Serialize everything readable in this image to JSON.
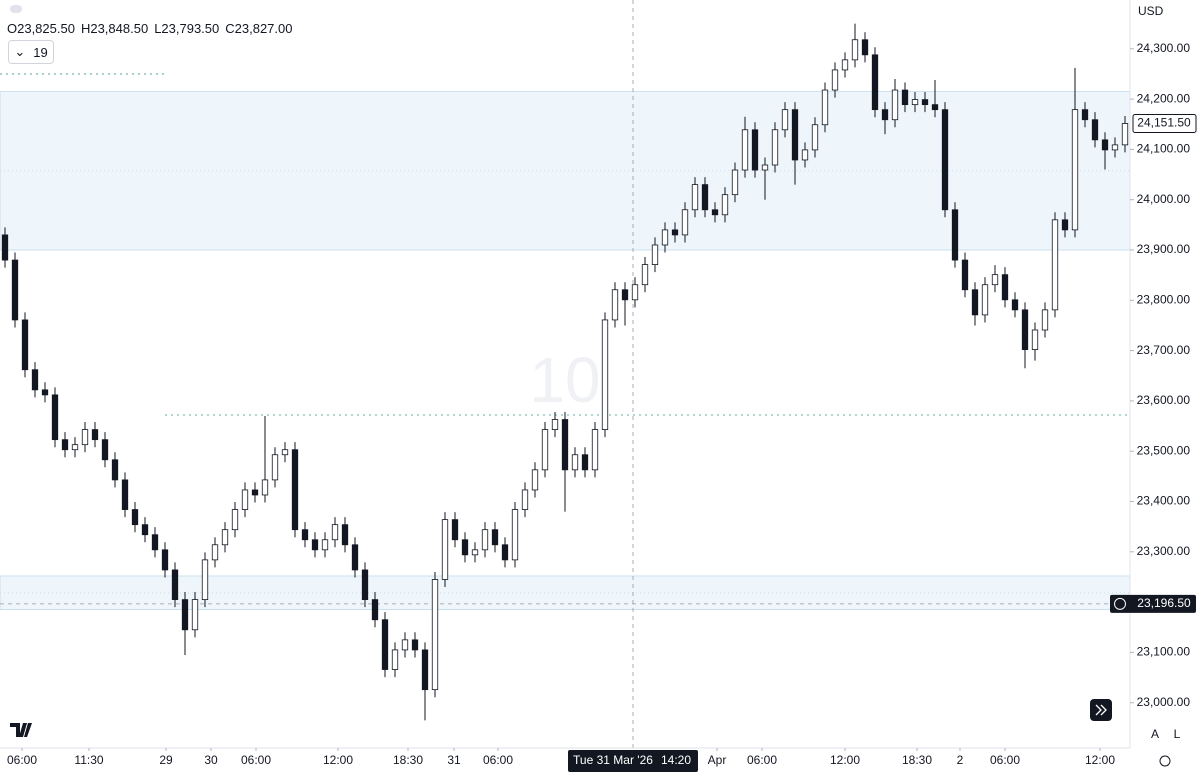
{
  "chart_data": {
    "type": "candlestick",
    "currency": "USD",
    "ohlc_header": [
      "O23,825.50",
      "H23,848.50",
      "L23,793.50",
      "C23,827.00"
    ],
    "indicator_count": "19",
    "watermark": "10",
    "buttons": [
      "A",
      "L"
    ],
    "color": "#131722",
    "xlim": [
      -0.5,
      112.5
    ],
    "ylim": [
      22910,
      24397
    ],
    "yticks": [
      {
        "value": 24300,
        "label": "24,300.00"
      },
      {
        "value": 24200,
        "label": "24,200.00"
      },
      {
        "value": 24100,
        "label": "24,100.00"
      },
      {
        "value": 24000,
        "label": "24,000.00"
      },
      {
        "value": 23900,
        "label": "23,900.00"
      },
      {
        "value": 23800,
        "label": "23,800.00"
      },
      {
        "value": 23700,
        "label": "23,700.00"
      },
      {
        "value": 23600,
        "label": "23,600.00"
      },
      {
        "value": 23500,
        "label": "23,500.00"
      },
      {
        "value": 23400,
        "label": "23,400.00"
      },
      {
        "value": 23300,
        "label": "23,300.00"
      },
      {
        "value": 23200,
        "label": "23,200.00"
      },
      {
        "value": 23100,
        "label": "23,100.00"
      },
      {
        "value": 23000,
        "label": "23,000.00"
      }
    ],
    "xticks": [
      {
        "value": 1.7,
        "label": "06:00"
      },
      {
        "value": 8.4,
        "label": "11:30"
      },
      {
        "value": 16.1,
        "label": "29"
      },
      {
        "value": 20.6,
        "label": "30"
      },
      {
        "value": 25.1,
        "label": "06:00"
      },
      {
        "value": 33.3,
        "label": "12:00"
      },
      {
        "value": 40.3,
        "label": "18:30"
      },
      {
        "value": 44.9,
        "label": "31"
      },
      {
        "value": 49.3,
        "label": "06:00"
      },
      {
        "value": 71.2,
        "label": "Apr"
      },
      {
        "value": 75.7,
        "label": "06:00"
      },
      {
        "value": 84,
        "label": "12:00"
      },
      {
        "value": 91.2,
        "label": "18:30"
      },
      {
        "value": 95.5,
        "label": "2"
      },
      {
        "value": 100,
        "label": "06:00"
      },
      {
        "value": 109.5,
        "label": "12:00"
      }
    ],
    "zones": [
      {
        "from": 23900,
        "to": 24215,
        "color": "#eef6fb"
      },
      {
        "from": 23185,
        "to": 23252,
        "color": "#eef6fb"
      }
    ],
    "levels": [
      {
        "value": 24250,
        "x_from": -0.5,
        "x_to": 16
      },
      {
        "value": 23572,
        "x_from": 16,
        "x_to": 112.5
      }
    ],
    "last_price": {
      "value": 24151.5,
      "label": "24,151.50"
    },
    "crosshair": {
      "x": 62.8,
      "price": {
        "value": 23196.5,
        "label": "23,196.50"
      },
      "date": "Tue 31 Mar '26",
      "time": "14:20"
    },
    "open": [
      23930,
      23880,
      23761,
      23662,
      23622,
      23612,
      23523,
      23503,
      23513,
      23543,
      23523,
      23483,
      23443,
      23384,
      23354,
      23334,
      23304,
      23264,
      23205,
      23145,
      23205,
      23284,
      23314,
      23344,
      23384,
      23423,
      23413,
      23443,
      23493,
      23503,
      23344,
      23324,
      23304,
      23324,
      23354,
      23314,
      23264,
      23205,
      23165,
      23066,
      23105,
      23125,
      23105,
      23026,
      23245,
      23364,
      23324,
      23294,
      23304,
      23344,
      23314,
      23284,
      23384,
      23423,
      23463,
      23543,
      23563,
      23463,
      23493,
      23463,
      23543,
      23761,
      23821,
      23801,
      23831,
      23871,
      23910,
      23940,
      23930,
      23980,
      24030,
      23980,
      23970,
      24010,
      24059,
      24139,
      24059,
      24069,
      24139,
      24179,
      24079,
      24099,
      24149,
      24218,
      24258,
      24278,
      24318,
      24288,
      24179,
      24159,
      24218,
      24189,
      24199,
      24189,
      24179,
      23980,
      23880,
      23821,
      23771,
      23831,
      23851,
      23801,
      23781,
      23702,
      23741,
      23781,
      23960,
      23940,
      24179,
      24159,
      24119,
      24099,
      24109
    ],
    "high": [
      23945,
      23895,
      23776,
      23677,
      23637,
      23627,
      23538,
      23528,
      23558,
      23558,
      23538,
      23498,
      23458,
      23399,
      23369,
      23349,
      23319,
      23279,
      23220,
      23220,
      23299,
      23329,
      23359,
      23399,
      23438,
      23438,
      23570,
      23508,
      23518,
      23518,
      23359,
      23339,
      23339,
      23369,
      23369,
      23329,
      23279,
      23220,
      23180,
      23120,
      23140,
      23140,
      23120,
      23260,
      23379,
      23379,
      23339,
      23319,
      23359,
      23359,
      23329,
      23399,
      23438,
      23478,
      23558,
      23578,
      23578,
      23508,
      23508,
      23558,
      23776,
      23836,
      23836,
      23846,
      23886,
      23925,
      23955,
      23955,
      23995,
      24045,
      24045,
      23995,
      24025,
      24074,
      24165,
      24154,
      24084,
      24154,
      24194,
      24194,
      24114,
      24164,
      24233,
      24273,
      24293,
      24350,
      24333,
      24303,
      24194,
      24240,
      24233,
      24214,
      24214,
      24238,
      24194,
      23995,
      23895,
      23836,
      23846,
      23870,
      23866,
      23816,
      23796,
      23756,
      23796,
      23975,
      23975,
      24262,
      24194,
      24174,
      24134,
      24124,
      24166.5
    ],
    "low": [
      23865,
      23746,
      23647,
      23607,
      23597,
      23508,
      23488,
      23488,
      23498,
      23508,
      23468,
      23428,
      23369,
      23339,
      23319,
      23289,
      23249,
      23190,
      23095,
      23130,
      23190,
      23269,
      23299,
      23329,
      23369,
      23398,
      23398,
      23428,
      23478,
      23329,
      23309,
      23289,
      23289,
      23309,
      23299,
      23249,
      23190,
      23150,
      23051,
      23051,
      23090,
      23090,
      22965,
      23011,
      23230,
      23309,
      23279,
      23279,
      23289,
      23299,
      23269,
      23269,
      23369,
      23408,
      23448,
      23528,
      23380,
      23448,
      23448,
      23448,
      23528,
      23746,
      23750,
      23786,
      23816,
      23856,
      23895,
      23915,
      23915,
      23965,
      23965,
      23955,
      23955,
      23995,
      24044,
      24044,
      24000,
      24054,
      24124,
      24030,
      24064,
      24084,
      24134,
      24203,
      24243,
      24263,
      24273,
      24164,
      24130,
      24144,
      24174,
      24174,
      24174,
      24164,
      23965,
      23865,
      23806,
      23750,
      23756,
      23816,
      23786,
      23766,
      23665,
      23680,
      23726,
      23766,
      23925,
      23925,
      24144,
      24104,
      24060,
      24084,
      24094
    ],
    "close": [
      23880,
      23761,
      23662,
      23622,
      23612,
      23523,
      23503,
      23513,
      23543,
      23523,
      23483,
      23443,
      23384,
      23354,
      23334,
      23304,
      23264,
      23205,
      23145,
      23205,
      23284,
      23314,
      23344,
      23384,
      23423,
      23413,
      23443,
      23493,
      23503,
      23344,
      23324,
      23304,
      23324,
      23354,
      23314,
      23264,
      23205,
      23165,
      23066,
      23105,
      23125,
      23105,
      23026,
      23245,
      23364,
      23324,
      23294,
      23304,
      23344,
      23314,
      23284,
      23384,
      23423,
      23463,
      23543,
      23563,
      23463,
      23493,
      23463,
      23543,
      23761,
      23821,
      23801,
      23831,
      23871,
      23910,
      23940,
      23930,
      23980,
      24030,
      23980,
      23970,
      24010,
      24059,
      24139,
      24059,
      24069,
      24139,
      24179,
      24079,
      24099,
      24149,
      24218,
      24258,
      24278,
      24318,
      24288,
      24179,
      24159,
      24218,
      24189,
      24199,
      24189,
      24179,
      23980,
      23880,
      23821,
      23771,
      23831,
      23851,
      23801,
      23781,
      23702,
      23741,
      23781,
      23960,
      23940,
      24179,
      24159,
      24119,
      24099,
      24109,
      24151.5
    ]
  }
}
